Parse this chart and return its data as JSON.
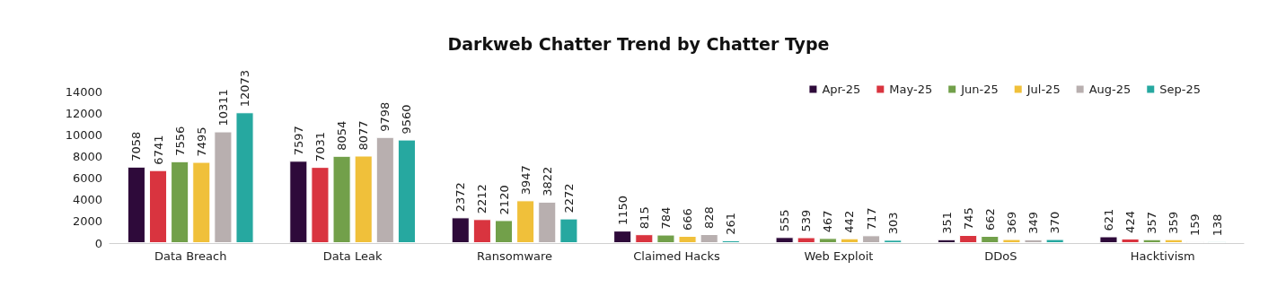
{
  "chart_data": {
    "type": "bar",
    "title": "Darkweb Chatter Trend by Chatter Type",
    "categories": [
      "Data Breach",
      "Data Leak",
      "Ransomware",
      "Claimed Hacks",
      "Web Exploit",
      "DDoS",
      "Hacktivism"
    ],
    "series": [
      {
        "name": "Apr-25",
        "color": "#2e0a3a",
        "values": [
          7058,
          7597,
          2372,
          1150,
          555,
          351,
          621
        ]
      },
      {
        "name": "May-25",
        "color": "#d9343f",
        "values": [
          6741,
          7031,
          2212,
          815,
          539,
          745,
          424
        ]
      },
      {
        "name": "Jun-25",
        "color": "#72a04a",
        "values": [
          7556,
          8054,
          2120,
          784,
          467,
          662,
          357
        ]
      },
      {
        "name": "Jul-25",
        "color": "#f0c03a",
        "values": [
          7495,
          8077,
          3947,
          666,
          442,
          369,
          359
        ]
      },
      {
        "name": "Aug-25",
        "color": "#b8afaf",
        "values": [
          10311,
          9798,
          3822,
          828,
          717,
          349,
          159
        ]
      },
      {
        "name": "Sep-25",
        "color": "#26a8a0",
        "values": [
          12073,
          9560,
          2272,
          261,
          303,
          370,
          138
        ]
      }
    ],
    "ylim": [
      0,
      14000
    ],
    "yticks": [
      0,
      2000,
      4000,
      6000,
      8000,
      10000,
      12000,
      14000
    ],
    "grid": false,
    "legend": "top right",
    "data_labels": true
  }
}
